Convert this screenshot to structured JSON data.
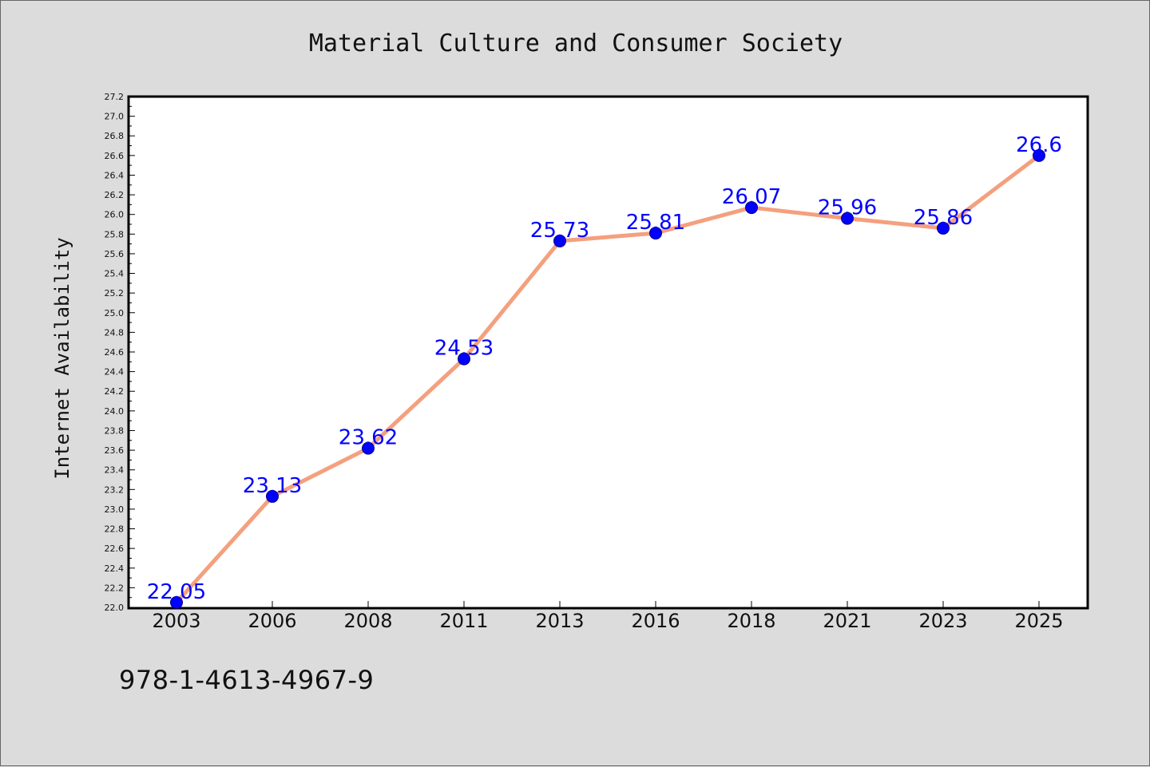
{
  "chart_data": {
    "type": "line",
    "title": "Material Culture and Consumer Society",
    "xlabel": "",
    "ylabel": "Internet Availability",
    "categories": [
      "2003",
      "2006",
      "2008",
      "2011",
      "2013",
      "2016",
      "2018",
      "2021",
      "2023",
      "2025"
    ],
    "series": [
      {
        "values": [
          22.05,
          23.13,
          23.62,
          24.53,
          25.73,
          25.81,
          26.07,
          25.96,
          25.86,
          26.6
        ]
      }
    ],
    "data_labels": [
      "22.05",
      "23.13",
      "23.62",
      "24.53",
      "25.73",
      "25.81",
      "26.07",
      "25.96",
      "25.86",
      "26.6"
    ],
    "ylim": [
      22.0,
      27.2
    ],
    "ytick_step": 0.2,
    "grid": false,
    "legend": "none",
    "colors": {
      "line": "#f4a07e",
      "marker": "#0000ff",
      "data_label": "#0000ff",
      "plot_bg": "#ffffff",
      "page_bg": "#dcdcdc"
    }
  },
  "footer": {
    "code": "978-1-4613-4967-9"
  }
}
